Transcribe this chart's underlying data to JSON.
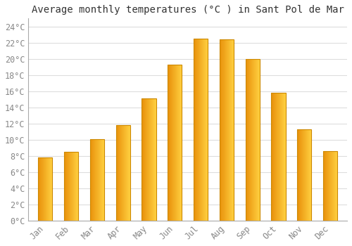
{
  "title": "Average monthly temperatures (°C ) in Sant Pol de Mar",
  "months": [
    "Jan",
    "Feb",
    "Mar",
    "Apr",
    "May",
    "Jun",
    "Jul",
    "Aug",
    "Sep",
    "Oct",
    "Nov",
    "Dec"
  ],
  "values": [
    7.8,
    8.5,
    10.1,
    11.8,
    15.1,
    19.3,
    22.5,
    22.4,
    20.0,
    15.8,
    11.3,
    8.6
  ],
  "bar_color_left": "#E8900A",
  "bar_color_right": "#FFD040",
  "background_color": "#FFFFFF",
  "plot_bg_color": "#FFFFFF",
  "grid_color": "#DDDDDD",
  "ylim": [
    0,
    25
  ],
  "yticks": [
    0,
    2,
    4,
    6,
    8,
    10,
    12,
    14,
    16,
    18,
    20,
    22,
    24
  ],
  "ytick_labels": [
    "0°C",
    "2°C",
    "4°C",
    "6°C",
    "8°C",
    "10°C",
    "12°C",
    "14°C",
    "16°C",
    "18°C",
    "20°C",
    "22°C",
    "24°C"
  ],
  "title_fontsize": 10,
  "tick_fontsize": 8.5,
  "tick_color": "#888888",
  "bar_width": 0.55,
  "bar_edge_color": "#CC8800",
  "bar_edge_width": 0.8
}
